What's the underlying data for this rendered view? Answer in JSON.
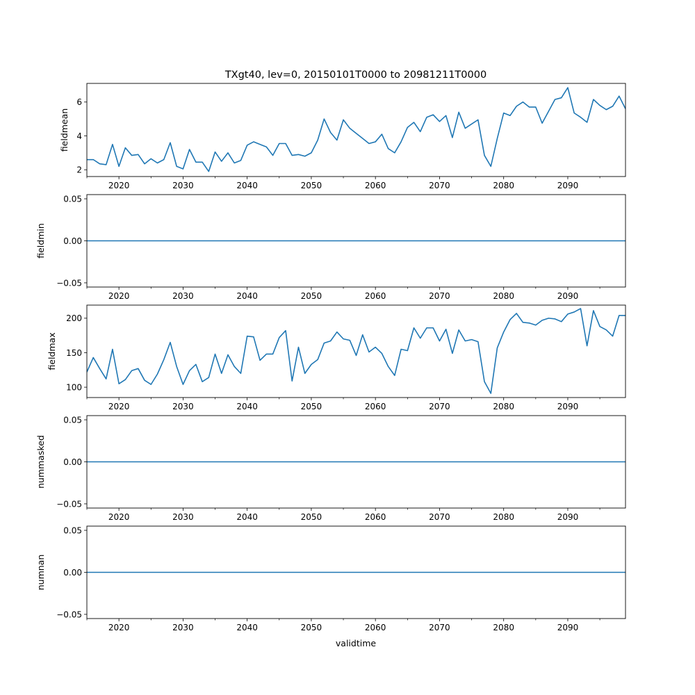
{
  "figure": {
    "title": "TXgt40, lev=0, 20150101T0000 to 20981211T0000",
    "xlabel": "validtime",
    "line_color": "#1f77b4"
  },
  "chart_data": [
    {
      "type": "line",
      "name": "fieldmean",
      "ylabel": "fieldmean",
      "xlim": [
        2015,
        2099
      ],
      "ylim": [
        1.6,
        7.1
      ],
      "yticks": [
        2,
        4,
        6
      ],
      "ytick_labels": [
        "2",
        "4",
        "6"
      ],
      "xticks": [
        2020,
        2030,
        2040,
        2050,
        2060,
        2070,
        2080,
        2090
      ],
      "xtick_labels": [
        "2020",
        "2030",
        "2040",
        "2050",
        "2060",
        "2070",
        "2080",
        "2090"
      ],
      "x_start": 2015,
      "values": [
        2.6,
        2.6,
        2.35,
        2.3,
        3.5,
        2.2,
        3.3,
        2.85,
        2.9,
        2.35,
        2.65,
        2.4,
        2.6,
        3.6,
        2.2,
        2.05,
        3.2,
        2.45,
        2.45,
        1.9,
        3.05,
        2.5,
        3.0,
        2.4,
        2.55,
        3.45,
        3.65,
        3.5,
        3.35,
        2.85,
        3.55,
        3.55,
        2.85,
        2.9,
        2.8,
        3.0,
        3.75,
        5.0,
        4.2,
        3.75,
        4.95,
        4.45,
        4.15,
        3.85,
        3.55,
        3.65,
        4.1,
        3.25,
        3.0,
        3.65,
        4.5,
        4.8,
        4.25,
        5.1,
        5.25,
        4.85,
        5.2,
        3.9,
        5.4,
        4.45,
        4.7,
        4.95,
        2.85,
        2.2,
        3.85,
        5.35,
        5.2,
        5.75,
        6.0,
        5.7,
        5.7,
        4.75,
        5.45,
        6.15,
        6.25,
        6.85,
        5.35,
        5.1,
        4.8,
        6.15,
        5.8,
        5.55,
        5.75,
        6.35,
        5.6
      ]
    },
    {
      "type": "line",
      "name": "fieldmin",
      "ylabel": "fieldmin",
      "xlim": [
        2015,
        2099
      ],
      "ylim": [
        -0.055,
        0.055
      ],
      "yticks": [
        -0.05,
        0.0,
        0.05
      ],
      "ytick_labels": [
        "−0.05",
        "0.00",
        "0.05"
      ],
      "xticks": [
        2020,
        2030,
        2040,
        2050,
        2060,
        2070,
        2080,
        2090
      ],
      "xtick_labels": [
        "2020",
        "2030",
        "2040",
        "2050",
        "2060",
        "2070",
        "2080",
        "2090"
      ],
      "x_start": 2015,
      "constant_value": 0.0,
      "count": 85
    },
    {
      "type": "line",
      "name": "fieldmax",
      "ylabel": "fieldmax",
      "xlim": [
        2015,
        2099
      ],
      "ylim": [
        85,
        219
      ],
      "yticks": [
        100,
        150,
        200
      ],
      "ytick_labels": [
        "100",
        "150",
        "200"
      ],
      "xticks": [
        2020,
        2030,
        2040,
        2050,
        2060,
        2070,
        2080,
        2090
      ],
      "xtick_labels": [
        "2020",
        "2030",
        "2040",
        "2050",
        "2060",
        "2070",
        "2080",
        "2090"
      ],
      "x_start": 2015,
      "values": [
        122,
        143,
        127,
        112,
        155,
        105,
        111,
        124,
        127,
        110,
        104,
        119,
        140,
        165,
        130,
        104,
        124,
        133,
        108,
        114,
        148,
        120,
        147,
        130,
        120,
        174,
        173,
        139,
        148,
        148,
        172,
        182,
        109,
        158,
        120,
        133,
        140,
        164,
        167,
        180,
        170,
        168,
        146,
        176,
        151,
        158,
        149,
        130,
        117,
        155,
        153,
        186,
        171,
        186,
        186,
        167,
        184,
        149,
        183,
        167,
        169,
        166,
        108,
        91,
        157,
        180,
        198,
        207,
        194,
        193,
        190,
        197,
        200,
        199,
        195,
        206,
        209,
        214,
        160,
        211,
        188,
        183,
        174,
        204,
        204
      ]
    },
    {
      "type": "line",
      "name": "nummasked",
      "ylabel": "nummasked",
      "xlim": [
        2015,
        2099
      ],
      "ylim": [
        -0.055,
        0.055
      ],
      "yticks": [
        -0.05,
        0.0,
        0.05
      ],
      "ytick_labels": [
        "−0.05",
        "0.00",
        "0.05"
      ],
      "xticks": [
        2020,
        2030,
        2040,
        2050,
        2060,
        2070,
        2080,
        2090
      ],
      "xtick_labels": [
        "2020",
        "2030",
        "2040",
        "2050",
        "2060",
        "2070",
        "2080",
        "2090"
      ],
      "x_start": 2015,
      "constant_value": 0.0,
      "count": 85
    },
    {
      "type": "line",
      "name": "numnan",
      "ylabel": "numnan",
      "xlim": [
        2015,
        2099
      ],
      "ylim": [
        -0.055,
        0.055
      ],
      "yticks": [
        -0.05,
        0.0,
        0.05
      ],
      "ytick_labels": [
        "−0.05",
        "0.00",
        "0.05"
      ],
      "xticks": [
        2020,
        2030,
        2040,
        2050,
        2060,
        2070,
        2080,
        2090
      ],
      "xtick_labels": [
        "2020",
        "2030",
        "2040",
        "2050",
        "2060",
        "2070",
        "2080",
        "2090"
      ],
      "x_start": 2015,
      "constant_value": 0.0,
      "count": 85
    }
  ]
}
